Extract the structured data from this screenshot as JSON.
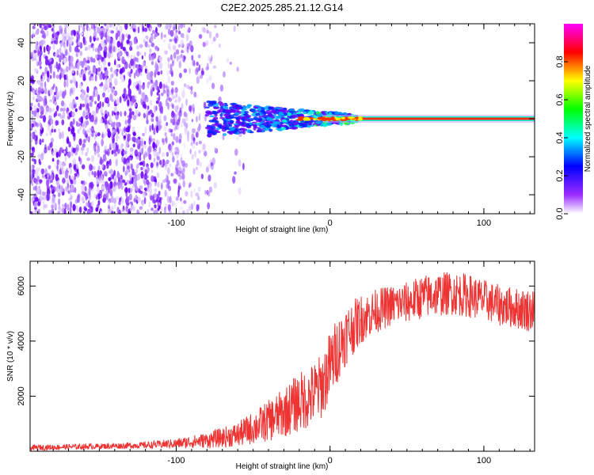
{
  "title": "C2E2.2025.285.21.12.G14",
  "chart_data": [
    {
      "type": "heatmap",
      "name": "spectrogram",
      "xlabel": "Height of straight line (km)",
      "ylabel": "Frequency (Hz)",
      "xlim": [
        -195,
        133
      ],
      "ylim": [
        -50,
        50
      ],
      "xticks": [
        -100,
        0,
        100
      ],
      "yticks": [
        -40,
        -20,
        0,
        20,
        40
      ],
      "xtick_labels": [
        "-100",
        "0",
        "100"
      ],
      "ytick_labels": [
        "-40",
        "-20",
        "0",
        "20",
        "40"
      ],
      "colorbar": {
        "label": "Normalized spectral amplitude",
        "range": [
          0,
          1
        ],
        "ticks": [
          0,
          0.2,
          0.4,
          0.6,
          0.8
        ],
        "tick_labels": [
          "0.0",
          "0.2",
          "0.4",
          "0.6",
          "0.8"
        ],
        "colors": [
          "#ffffff",
          "#8f00ff",
          "#0000ff",
          "#00ffff",
          "#00ff00",
          "#ffff00",
          "#ff0000",
          "#ff00ff"
        ]
      },
      "features": {
        "noise_region_x": [
          -195,
          -75
        ],
        "carrier_onset_x": -75,
        "carrier_stable_from_x": 18,
        "carrier_frequency_hz": 0
      }
    },
    {
      "type": "line",
      "name": "snr",
      "xlabel": "Height of straight line (km)",
      "ylabel": "SNR (10 * v/v)",
      "xlim": [
        -195,
        133
      ],
      "ylim": [
        0,
        6900
      ],
      "xticks": [
        -100,
        0,
        100
      ],
      "yticks": [
        2000,
        4000,
        6000
      ],
      "xtick_labels": [
        "-100",
        "0",
        "100"
      ],
      "ytick_labels": [
        "2000",
        "4000",
        "6000"
      ],
      "color": "#ee3333",
      "series": [
        {
          "name": "SNR",
          "x": [
            -195,
            -150,
            -120,
            -100,
            -80,
            -60,
            -50,
            -40,
            -30,
            -20,
            -15,
            -10,
            -5,
            0,
            5,
            10,
            20,
            30,
            40,
            50,
            60,
            70,
            80,
            90,
            100,
            110,
            120,
            133
          ],
          "y": [
            130,
            180,
            220,
            280,
            400,
            600,
            850,
            1100,
            1400,
            1800,
            1900,
            2100,
            2400,
            3100,
            3700,
            4200,
            4800,
            5100,
            5300,
            5400,
            5600,
            5700,
            5750,
            5650,
            5500,
            5300,
            5200,
            5100
          ],
          "spread": [
            100,
            100,
            120,
            180,
            280,
            450,
            600,
            750,
            900,
            1100,
            1100,
            1200,
            1200,
            1300,
            1200,
            1100,
            900,
            800,
            750,
            750,
            800,
            800,
            800,
            800,
            750,
            750,
            750,
            800
          ]
        }
      ]
    }
  ]
}
